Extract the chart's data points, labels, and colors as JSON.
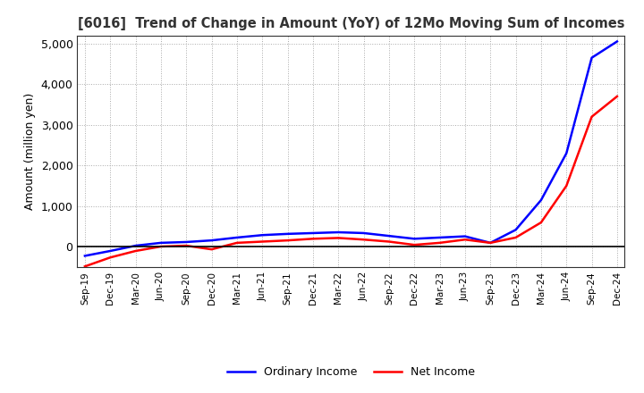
{
  "title": "[6016]  Trend of Change in Amount (YoY) of 12Mo Moving Sum of Incomes",
  "ylabel": "Amount (million yen)",
  "ylim": [
    -500,
    5200
  ],
  "yticks": [
    0,
    1000,
    2000,
    3000,
    4000,
    5000
  ],
  "background_color": "#ffffff",
  "grid_color": "#aaaaaa",
  "ordinary_income_color": "#0000ff",
  "net_income_color": "#ff0000",
  "x_labels": [
    "Sep-19",
    "Dec-19",
    "Mar-20",
    "Jun-20",
    "Sep-20",
    "Dec-20",
    "Mar-21",
    "Jun-21",
    "Sep-21",
    "Dec-21",
    "Mar-22",
    "Jun-22",
    "Sep-22",
    "Dec-22",
    "Mar-23",
    "Jun-23",
    "Sep-23",
    "Dec-23",
    "Mar-24",
    "Jun-24",
    "Sep-24",
    "Dec-24"
  ],
  "ordinary_income": [
    -220,
    -100,
    30,
    100,
    120,
    160,
    230,
    290,
    320,
    340,
    360,
    340,
    270,
    200,
    230,
    260,
    100,
    420,
    1150,
    2300,
    4650,
    5050
  ],
  "net_income": [
    -480,
    -260,
    -100,
    10,
    30,
    -60,
    100,
    130,
    160,
    200,
    220,
    180,
    130,
    50,
    100,
    180,
    100,
    230,
    600,
    1500,
    3200,
    3700
  ]
}
